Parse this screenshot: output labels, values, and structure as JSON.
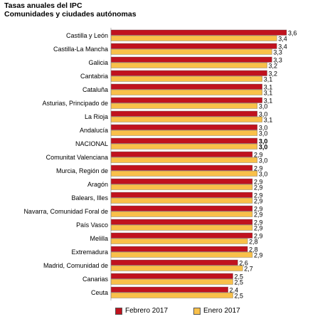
{
  "chart_data": {
    "type": "bar",
    "orientation": "horizontal",
    "title": "Tasas anuales del IPC",
    "subtitle": "Comunidades y ciudades autónomas",
    "xlabel": "",
    "ylabel": "",
    "xlim": [
      0,
      3.6
    ],
    "grid": false,
    "legend_position": "bottom",
    "categories": [
      "Castilla y León",
      "Castilla-La Mancha",
      "Galicia",
      "Cantabria",
      "Cataluña",
      "Asturias, Principado de",
      "La Rioja",
      "Andalucía",
      "NACIONAL",
      "Comunitat Valenciana",
      "Murcia, Región de",
      "Aragón",
      "Balears, Illes",
      "Navarra, Comunidad Foral de",
      "País Vasco",
      "Melilla",
      "Extremadura",
      "Madrid, Comunidad de",
      "Canarias",
      "Ceuta"
    ],
    "value_labels": {
      "series0": [
        "3,6",
        "3,4",
        "3,3",
        "3,2",
        "3,1",
        "3,1",
        "3,0",
        "3,0",
        "3,0",
        "2,9",
        "2,9",
        "2,9",
        "2,9",
        "2,9",
        "2,9",
        "2,9",
        "2,8",
        "2,6",
        "2,5",
        "2,4"
      ],
      "series1": [
        "3,4",
        "3,3",
        "3,2",
        "3,1",
        "3,1",
        "3,0",
        "3,1",
        "3,0",
        "3,0",
        "3,0",
        "3,0",
        "2,9",
        "2,9",
        "2,9",
        "2,9",
        "2,8",
        "2,9",
        "2,7",
        "2,5",
        "2,5"
      ]
    },
    "bold_category": "NACIONAL",
    "series": [
      {
        "name": "Febrero 2017",
        "color": "#c0121e",
        "values": [
          3.6,
          3.4,
          3.3,
          3.2,
          3.1,
          3.1,
          3.0,
          3.0,
          3.0,
          2.9,
          2.9,
          2.9,
          2.9,
          2.9,
          2.9,
          2.9,
          2.8,
          2.6,
          2.5,
          2.4
        ]
      },
      {
        "name": "Enero 2017",
        "color": "#f9c04a",
        "values": [
          3.4,
          3.3,
          3.2,
          3.1,
          3.1,
          3.0,
          3.1,
          3.0,
          3.0,
          3.0,
          3.0,
          2.9,
          2.9,
          2.9,
          2.9,
          2.8,
          2.9,
          2.7,
          2.5,
          2.5
        ]
      }
    ]
  }
}
